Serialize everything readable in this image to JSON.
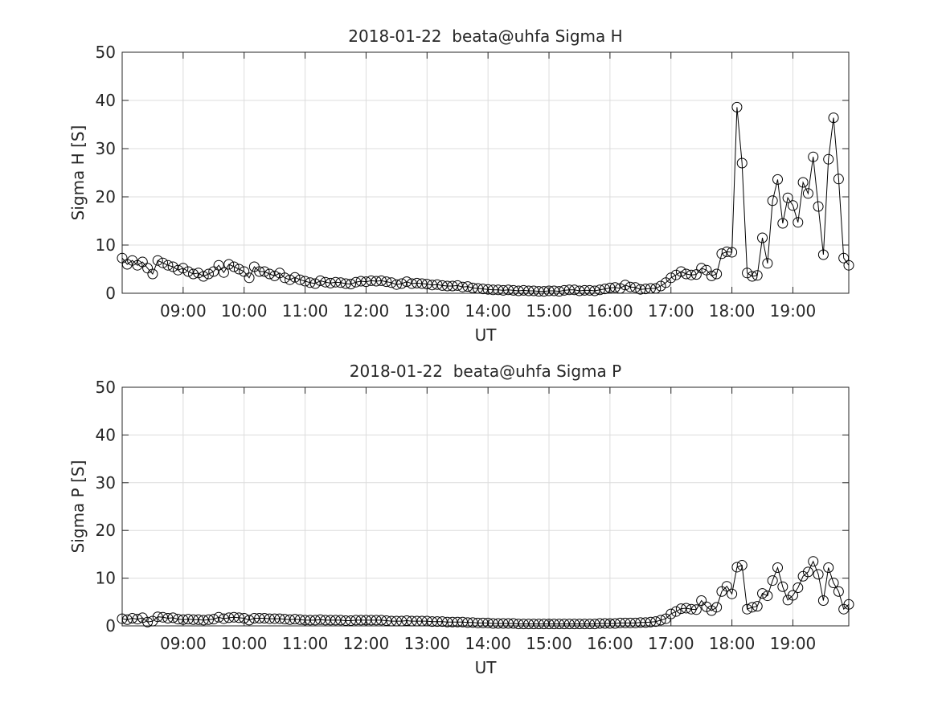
{
  "chart_data": [
    {
      "type": "line",
      "title": "2018-01-22  beata@uhfa Sigma H",
      "xlabel": "UT",
      "ylabel": "Sigma H [S]",
      "x": [
        "08:00",
        "08:05",
        "08:10",
        "08:15",
        "08:20",
        "08:25",
        "08:30",
        "08:35",
        "08:40",
        "08:45",
        "08:50",
        "08:55",
        "09:00",
        "09:05",
        "09:10",
        "09:15",
        "09:20",
        "09:25",
        "09:30",
        "09:35",
        "09:40",
        "09:45",
        "09:50",
        "09:55",
        "10:00",
        "10:05",
        "10:10",
        "10:15",
        "10:20",
        "10:25",
        "10:30",
        "10:35",
        "10:40",
        "10:45",
        "10:50",
        "10:55",
        "11:00",
        "11:05",
        "11:10",
        "11:15",
        "11:20",
        "11:25",
        "11:30",
        "11:35",
        "11:40",
        "11:45",
        "11:50",
        "11:55",
        "12:00",
        "12:05",
        "12:10",
        "12:15",
        "12:20",
        "12:25",
        "12:30",
        "12:35",
        "12:40",
        "12:45",
        "12:50",
        "12:55",
        "13:00",
        "13:05",
        "13:10",
        "13:15",
        "13:20",
        "13:25",
        "13:30",
        "13:35",
        "13:40",
        "13:45",
        "13:50",
        "13:55",
        "14:00",
        "14:05",
        "14:10",
        "14:15",
        "14:20",
        "14:25",
        "14:30",
        "14:35",
        "14:40",
        "14:45",
        "14:50",
        "14:55",
        "15:00",
        "15:05",
        "15:10",
        "15:15",
        "15:20",
        "15:25",
        "15:30",
        "15:35",
        "15:40",
        "15:45",
        "15:50",
        "15:55",
        "16:00",
        "16:05",
        "16:10",
        "16:15",
        "16:20",
        "16:25",
        "16:30",
        "16:35",
        "16:40",
        "16:45",
        "16:50",
        "16:55",
        "17:00",
        "17:05",
        "17:10",
        "17:15",
        "17:20",
        "17:25",
        "17:30",
        "17:35",
        "17:40",
        "17:45",
        "17:50",
        "17:55",
        "18:00",
        "18:05",
        "18:10",
        "18:15",
        "18:20",
        "18:25",
        "18:30",
        "18:35",
        "18:40",
        "18:45",
        "18:50",
        "18:55",
        "19:00",
        "19:05",
        "19:10",
        "19:15",
        "19:20",
        "19:25",
        "19:30",
        "19:35",
        "19:40",
        "19:45",
        "19:50",
        "19:55"
      ],
      "values": [
        7.3,
        6.0,
        6.8,
        5.8,
        6.5,
        5.2,
        4.0,
        6.8,
        6.3,
        5.8,
        5.5,
        4.8,
        5.2,
        4.5,
        4.0,
        4.2,
        3.5,
        4.0,
        4.5,
        5.8,
        4.3,
        6.0,
        5.5,
        5.0,
        4.5,
        3.2,
        5.5,
        4.5,
        4.5,
        4.0,
        3.6,
        4.2,
        3.2,
        2.8,
        3.3,
        2.8,
        2.5,
        2.2,
        2.0,
        2.6,
        2.3,
        2.1,
        2.3,
        2.2,
        2.0,
        1.9,
        2.3,
        2.5,
        2.4,
        2.6,
        2.5,
        2.6,
        2.4,
        2.2,
        1.8,
        2.0,
        2.4,
        2.0,
        2.1,
        2.0,
        1.9,
        1.7,
        1.8,
        1.6,
        1.5,
        1.5,
        1.6,
        1.3,
        1.4,
        1.1,
        1.0,
        0.9,
        0.8,
        0.7,
        0.7,
        0.6,
        0.7,
        0.6,
        0.5,
        0.6,
        0.5,
        0.5,
        0.4,
        0.4,
        0.5,
        0.5,
        0.4,
        0.6,
        0.7,
        0.7,
        0.5,
        0.6,
        0.6,
        0.5,
        0.7,
        0.9,
        1.1,
        1.2,
        1.0,
        1.7,
        1.3,
        1.2,
        0.8,
        0.9,
        1.0,
        1.0,
        1.5,
        2.2,
        3.2,
        3.8,
        4.5,
        4.0,
        3.8,
        3.9,
        5.2,
        4.8,
        3.6,
        4.0,
        8.2,
        8.6,
        8.5,
        38.6,
        27.0,
        4.2,
        3.5,
        3.7,
        11.5,
        6.2,
        19.2,
        23.6,
        14.5,
        19.8,
        18.2,
        14.7,
        23.0,
        20.7,
        28.3,
        18.0,
        8.0,
        27.8,
        36.4,
        23.7,
        7.3,
        5.8
      ],
      "color": "#000000",
      "xlim": [
        "08:00",
        "19:55"
      ],
      "xticks": [
        "09:00",
        "10:00",
        "11:00",
        "12:00",
        "13:00",
        "14:00",
        "15:00",
        "16:00",
        "17:00",
        "18:00",
        "19:00"
      ],
      "ylim": [
        0,
        50
      ],
      "yticks": [
        0,
        10,
        20,
        30,
        40,
        50
      ],
      "grid": true
    },
    {
      "type": "line",
      "title": "2018-01-22  beata@uhfa Sigma P",
      "xlabel": "UT",
      "ylabel": "Sigma P [S]",
      "x": [
        "08:00",
        "08:05",
        "08:10",
        "08:15",
        "08:20",
        "08:25",
        "08:30",
        "08:35",
        "08:40",
        "08:45",
        "08:50",
        "08:55",
        "09:00",
        "09:05",
        "09:10",
        "09:15",
        "09:20",
        "09:25",
        "09:30",
        "09:35",
        "09:40",
        "09:45",
        "09:50",
        "09:55",
        "10:00",
        "10:05",
        "10:10",
        "10:15",
        "10:20",
        "10:25",
        "10:30",
        "10:35",
        "10:40",
        "10:45",
        "10:50",
        "10:55",
        "11:00",
        "11:05",
        "11:10",
        "11:15",
        "11:20",
        "11:25",
        "11:30",
        "11:35",
        "11:40",
        "11:45",
        "11:50",
        "11:55",
        "12:00",
        "12:05",
        "12:10",
        "12:15",
        "12:20",
        "12:25",
        "12:30",
        "12:35",
        "12:40",
        "12:45",
        "12:50",
        "12:55",
        "13:00",
        "13:05",
        "13:10",
        "13:15",
        "13:20",
        "13:25",
        "13:30",
        "13:35",
        "13:40",
        "13:45",
        "13:50",
        "13:55",
        "14:00",
        "14:05",
        "14:10",
        "14:15",
        "14:20",
        "14:25",
        "14:30",
        "14:35",
        "14:40",
        "14:45",
        "14:50",
        "14:55",
        "15:00",
        "15:05",
        "15:10",
        "15:15",
        "15:20",
        "15:25",
        "15:30",
        "15:35",
        "15:40",
        "15:45",
        "15:50",
        "15:55",
        "16:00",
        "16:05",
        "16:10",
        "16:15",
        "16:20",
        "16:25",
        "16:30",
        "16:35",
        "16:40",
        "16:45",
        "16:50",
        "16:55",
        "17:00",
        "17:05",
        "17:10",
        "17:15",
        "17:20",
        "17:25",
        "17:30",
        "17:35",
        "17:40",
        "17:45",
        "17:50",
        "17:55",
        "18:00",
        "18:05",
        "18:10",
        "18:15",
        "18:20",
        "18:25",
        "18:30",
        "18:35",
        "18:40",
        "18:45",
        "18:50",
        "18:55",
        "19:00",
        "19:05",
        "19:10",
        "19:15",
        "19:20",
        "19:25",
        "19:30",
        "19:35",
        "19:40",
        "19:45",
        "19:50",
        "19:55"
      ],
      "values": [
        1.5,
        1.3,
        1.6,
        1.4,
        1.7,
        0.8,
        1.0,
        1.9,
        1.8,
        1.6,
        1.7,
        1.4,
        1.3,
        1.4,
        1.3,
        1.3,
        1.2,
        1.3,
        1.4,
        1.8,
        1.5,
        1.7,
        1.8,
        1.7,
        1.6,
        1.2,
        1.6,
        1.6,
        1.6,
        1.5,
        1.5,
        1.5,
        1.4,
        1.3,
        1.4,
        1.3,
        1.2,
        1.2,
        1.2,
        1.3,
        1.2,
        1.2,
        1.2,
        1.2,
        1.1,
        1.1,
        1.2,
        1.2,
        1.2,
        1.2,
        1.2,
        1.2,
        1.1,
        1.0,
        1.0,
        1.0,
        1.1,
        1.0,
        1.0,
        1.0,
        1.0,
        0.9,
        0.9,
        0.9,
        0.8,
        0.8,
        0.8,
        0.8,
        0.7,
        0.7,
        0.6,
        0.6,
        0.6,
        0.5,
        0.5,
        0.5,
        0.5,
        0.5,
        0.4,
        0.4,
        0.4,
        0.4,
        0.4,
        0.4,
        0.4,
        0.4,
        0.4,
        0.4,
        0.4,
        0.4,
        0.4,
        0.4,
        0.4,
        0.4,
        0.5,
        0.5,
        0.5,
        0.5,
        0.6,
        0.6,
        0.6,
        0.6,
        0.7,
        0.7,
        0.8,
        0.9,
        1.2,
        1.5,
        2.5,
        3.0,
        3.6,
        3.7,
        3.5,
        3.4,
        5.3,
        4.0,
        3.2,
        3.9,
        7.2,
        8.3,
        6.7,
        12.3,
        12.7,
        3.5,
        3.9,
        4.1,
        6.8,
        6.3,
        9.5,
        12.2,
        8.2,
        5.4,
        6.4,
        8.0,
        10.4,
        11.3,
        13.5,
        10.8,
        5.3,
        12.2,
        9.0,
        7.2,
        3.5,
        4.5
      ],
      "color": "#000000",
      "xlim": [
        "08:00",
        "19:55"
      ],
      "xticks": [
        "09:00",
        "10:00",
        "11:00",
        "12:00",
        "13:00",
        "14:00",
        "15:00",
        "16:00",
        "17:00",
        "18:00",
        "19:00"
      ],
      "ylim": [
        0,
        50
      ],
      "yticks": [
        0,
        10,
        20,
        30,
        40,
        50
      ],
      "grid": true
    }
  ]
}
